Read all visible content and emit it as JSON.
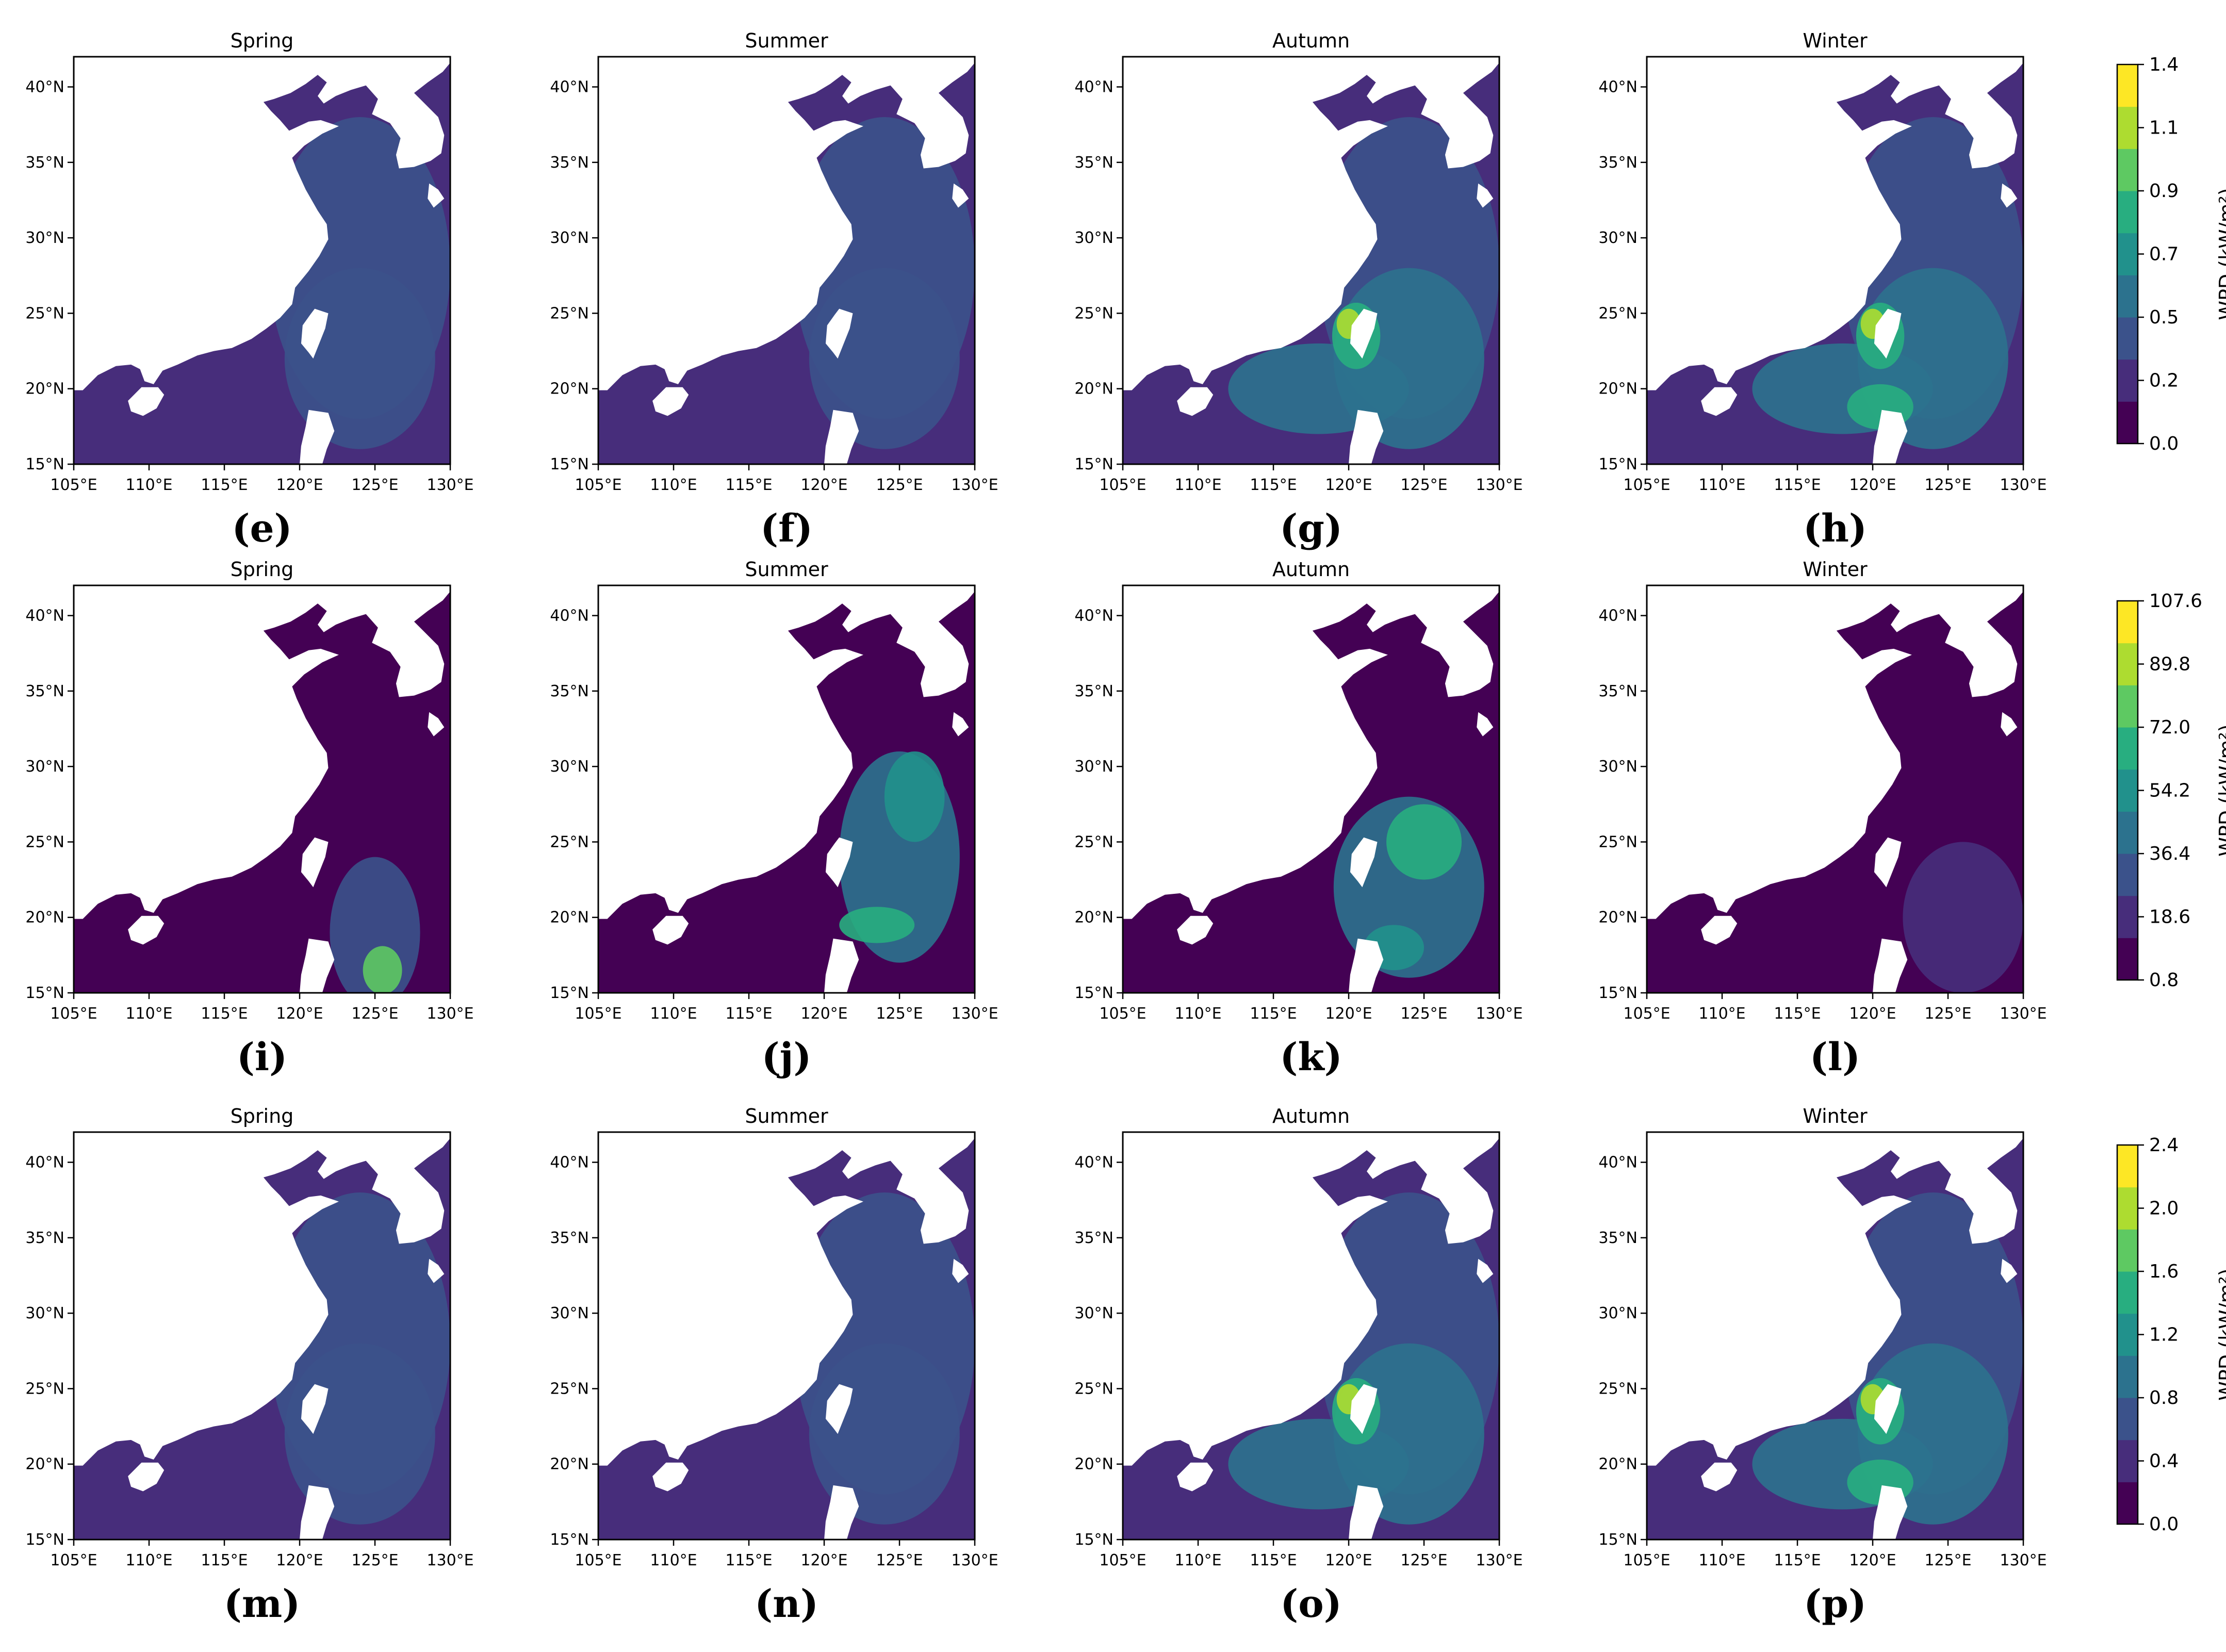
{
  "figure": {
    "panels": [
      {
        "letter": "(e)",
        "title": "Spring"
      },
      {
        "letter": "(f)",
        "title": "Summer"
      },
      {
        "letter": "(g)",
        "title": "Autumn"
      },
      {
        "letter": "(h)",
        "title": "Winter"
      },
      {
        "letter": "(i)",
        "title": "Spring"
      },
      {
        "letter": "(j)",
        "title": "Summer"
      },
      {
        "letter": "(k)",
        "title": "Autumn"
      },
      {
        "letter": "(l)",
        "title": "Winter"
      },
      {
        "letter": "(m)",
        "title": "Spring"
      },
      {
        "letter": "(n)",
        "title": "Summer"
      },
      {
        "letter": "(o)",
        "title": "Autumn"
      },
      {
        "letter": "(p)",
        "title": "Winter"
      }
    ],
    "lon_ticks": [
      "105°E",
      "110°E",
      "115°E",
      "120°E",
      "125°E",
      "130°E"
    ],
    "lat_ticks": [
      "15°N",
      "20°N",
      "25°N",
      "30°N",
      "35°N",
      "40°N"
    ],
    "colorbars": [
      {
        "label": "WPD (kW/m²)",
        "ticks": [
          "0.0",
          "0.2",
          "0.5",
          "0.7",
          "0.9",
          "1.1",
          "1.4"
        ]
      },
      {
        "label": "WPD (kW/m²)",
        "ticks": [
          "0.8",
          "18.6",
          "36.4",
          "54.2",
          "72.0",
          "89.8",
          "107.6"
        ]
      },
      {
        "label": "WPD (kW/m²)",
        "ticks": [
          "0.0",
          "0.4",
          "0.8",
          "1.2",
          "1.6",
          "2.0",
          "2.4"
        ]
      }
    ],
    "colormap": [
      "#440154",
      "#472d7b",
      "#3b528b",
      "#2c728e",
      "#21918c",
      "#28ae80",
      "#5ec962",
      "#addc30",
      "#fde725"
    ],
    "land_color": "#ffffff"
  },
  "chart_data": {
    "type": "heatmap",
    "x_range": [
      105,
      130
    ],
    "y_range": [
      15,
      42
    ],
    "rows": [
      {
        "colorbar_range": [
          0.0,
          1.4
        ],
        "panels": [
          "Spring",
          "Summer",
          "Autumn",
          "Winter"
        ]
      },
      {
        "colorbar_range": [
          0.8,
          107.6
        ],
        "panels": [
          "Spring",
          "Summer",
          "Autumn",
          "Winter"
        ]
      },
      {
        "colorbar_range": [
          0.0,
          2.4
        ],
        "panels": [
          "Spring",
          "Summer",
          "Autumn",
          "Winter"
        ]
      }
    ]
  }
}
